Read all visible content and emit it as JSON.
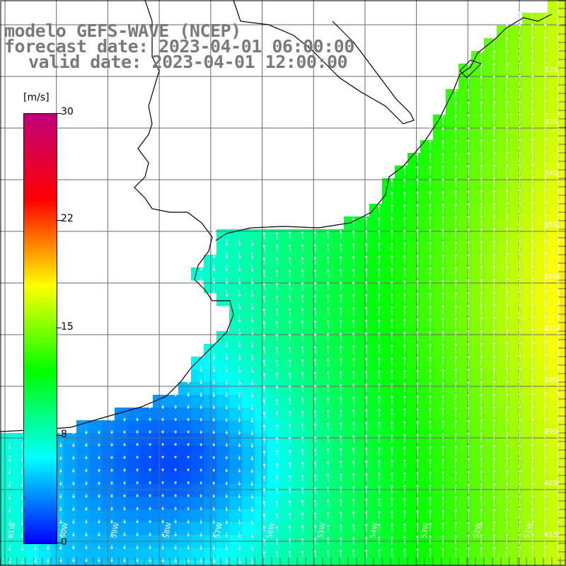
{
  "title": {
    "line1": "modelo GEFS-WAVE (NCEP)",
    "line2": "forecast date: 2023-04-01 06:00:00",
    "line3": "valid date: 2023-04-01 12:00:00"
  },
  "colorbar": {
    "unit": "[m/s]",
    "ticks": [
      "30",
      "22",
      "15",
      "8",
      "0"
    ],
    "tick_values": [
      30,
      22,
      15,
      8,
      0
    ],
    "min": 0,
    "max": 30,
    "colors": [
      "#0000ff",
      "#00ffff",
      "#00ff00",
      "#ffff00",
      "#ff0000",
      "#c0007a"
    ]
  },
  "map": {
    "lat_labels": [
      "32S",
      "33S",
      "34S",
      "35S",
      "36S",
      "37S",
      "38S",
      "39S",
      "40S",
      "41S"
    ],
    "lon_labels": [
      "61W",
      "60W",
      "59W",
      "58W",
      "57W",
      "56W",
      "55W",
      "54W",
      "53W",
      "52W",
      "51W"
    ],
    "land_color": "#ffffff",
    "grid_color": "#6a6a6a",
    "vector_color": "#ffffff",
    "coast_color": "#000000"
  },
  "chart_data": {
    "type": "heatmap",
    "title": "modelo GEFS-WAVE (NCEP)",
    "variable_unit": "m/s",
    "color_range": [
      0,
      30
    ],
    "region": {
      "lon": [
        -62,
        -51
      ],
      "lat": [
        -41.3,
        -31.5
      ]
    },
    "field_samples": [
      {
        "lon": -51.5,
        "lat": -36.5,
        "value": 16
      },
      {
        "lon": -52.5,
        "lat": -34.0,
        "value": 13
      },
      {
        "lon": -54.0,
        "lat": -37.0,
        "value": 10
      },
      {
        "lon": -56.0,
        "lat": -37.5,
        "value": 8
      },
      {
        "lon": -57.5,
        "lat": -36.0,
        "value": 6
      },
      {
        "lon": -58.5,
        "lat": -39.5,
        "value": 2
      },
      {
        "lon": -60.5,
        "lat": -39.5,
        "value": 5
      },
      {
        "lon": -61.8,
        "lat": -39.2,
        "value": 9
      }
    ]
  }
}
